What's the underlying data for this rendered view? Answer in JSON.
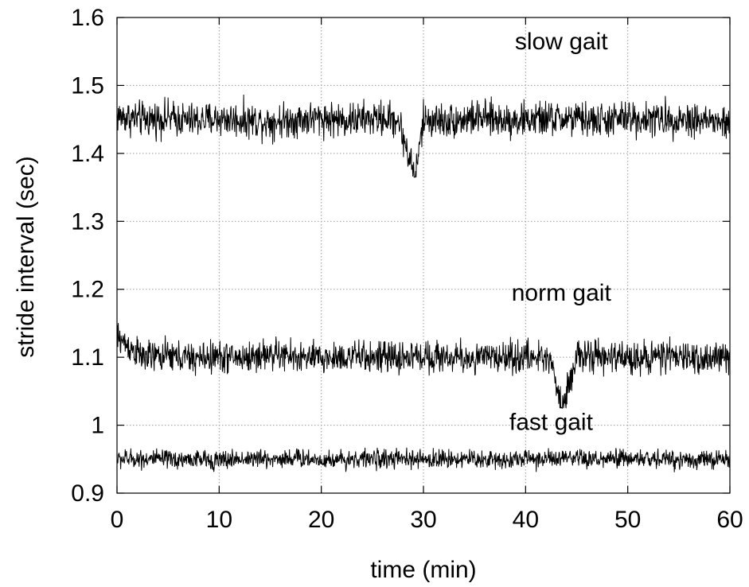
{
  "chart_data": {
    "type": "line",
    "title": "",
    "xlabel": "time  (min)",
    "ylabel": "stride interval (sec)",
    "xlim": [
      0,
      60
    ],
    "ylim": [
      0.9,
      1.6
    ],
    "xticks": [
      0,
      10,
      20,
      30,
      40,
      50,
      60
    ],
    "yticks": [
      0.9,
      1,
      1.1,
      1.2,
      1.3,
      1.4,
      1.5,
      1.6
    ],
    "xtick_labels": [
      "0",
      "10",
      "20",
      "30",
      "40",
      "50",
      "60"
    ],
    "ytick_labels": [
      "0.9",
      "1",
      "1.1",
      "1.2",
      "1.3",
      "1.4",
      "1.5",
      "1.6"
    ],
    "grid": true,
    "legend": "none",
    "series": [
      {
        "label": "slow gait",
        "x": [
          0,
          2.5,
          5,
          7.5,
          10,
          12.5,
          15,
          17.5,
          20,
          22.5,
          25,
          27.5,
          29.2,
          30,
          32.5,
          35,
          37.5,
          40,
          42.5,
          45,
          47.5,
          50,
          52.5,
          55,
          57.5,
          60
        ],
        "values": [
          1.455,
          1.45,
          1.452,
          1.448,
          1.451,
          1.449,
          1.447,
          1.45,
          1.452,
          1.449,
          1.451,
          1.45,
          1.365,
          1.45,
          1.448,
          1.452,
          1.45,
          1.449,
          1.451,
          1.45,
          1.448,
          1.452,
          1.45,
          1.451,
          1.449,
          1.442
        ],
        "mean": 1.45,
        "min": 1.365,
        "max": 1.525
      },
      {
        "label": "norm gait",
        "x": [
          0,
          2.5,
          5,
          7.5,
          10,
          12.5,
          15,
          17.5,
          20,
          22.5,
          25,
          27.5,
          30,
          32.5,
          35,
          37.5,
          40,
          42.5,
          43.5,
          45,
          47.5,
          50,
          52.5,
          55,
          57.5,
          60
        ],
        "values": [
          1.13,
          1.1,
          1.102,
          1.098,
          1.101,
          1.099,
          1.105,
          1.1,
          1.098,
          1.101,
          1.1,
          1.099,
          1.102,
          1.1,
          1.098,
          1.101,
          1.1,
          1.099,
          1.025,
          1.101,
          1.1,
          1.099,
          1.101,
          1.1,
          1.098,
          1.1
        ],
        "mean": 1.1,
        "min": 1.025,
        "max": 1.17
      },
      {
        "label": "fast gait",
        "x": [
          0,
          2.5,
          5,
          7.5,
          10,
          12.5,
          15,
          17.5,
          20,
          22.5,
          25,
          27.5,
          30,
          32.5,
          35,
          37.5,
          40,
          42.5,
          45,
          47.5,
          50,
          52.5,
          55,
          57.5,
          60
        ],
        "values": [
          0.95,
          0.951,
          0.949,
          0.95,
          0.948,
          0.951,
          0.95,
          0.952,
          0.949,
          0.95,
          0.951,
          0.95,
          0.949,
          0.951,
          0.95,
          0.949,
          0.951,
          0.95,
          0.95,
          0.949,
          0.951,
          0.95,
          0.95,
          0.949,
          0.95
        ],
        "mean": 0.95,
        "min": 0.91,
        "max": 0.997
      }
    ],
    "annotations": [
      {
        "text": "slow gait",
        "x": 43.5,
        "y": 1.565
      },
      {
        "text": "norm gait",
        "x": 43.5,
        "y": 1.195
      },
      {
        "text": "fast gait",
        "x": 42.5,
        "y": 1.005
      }
    ]
  }
}
